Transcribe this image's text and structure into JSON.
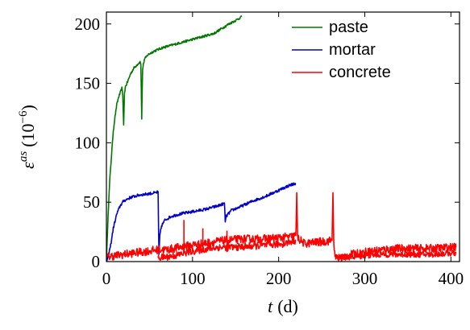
{
  "chart_data": {
    "type": "line",
    "xlabel_var": "t",
    "xlabel_unit": "(d)",
    "ylabel_var": "ε",
    "ylabel_sup": "as",
    "ylabel_unit_open": "(10",
    "ylabel_unit_exp": "−6",
    "ylabel_unit_close": ")",
    "xlim": [
      0,
      410
    ],
    "ylim": [
      0,
      210
    ],
    "x_ticks": [
      0,
      100,
      200,
      300,
      400
    ],
    "y_ticks": [
      0,
      50,
      100,
      150,
      200
    ],
    "x_tick_labels": [
      "0",
      "100",
      "200",
      "300",
      "400"
    ],
    "y_tick_labels": [
      "0",
      "50",
      "100",
      "150",
      "200"
    ],
    "grid": false,
    "legend_position": "top-right",
    "series": [
      {
        "name": "paste",
        "color": "#007800",
        "noise": 1.0,
        "points": [
          [
            0,
            0
          ],
          [
            2,
            40
          ],
          [
            4,
            70
          ],
          [
            6,
            90
          ],
          [
            8,
            110
          ],
          [
            10,
            122
          ],
          [
            12,
            132
          ],
          [
            14,
            138
          ],
          [
            16,
            142
          ],
          [
            18,
            146
          ],
          [
            19,
            140
          ],
          [
            20,
            115
          ],
          [
            21,
            142
          ],
          [
            22,
            147
          ],
          [
            25,
            152
          ],
          [
            28,
            158
          ],
          [
            32,
            163
          ],
          [
            36,
            166
          ],
          [
            39,
            168
          ],
          [
            40,
            166
          ],
          [
            41,
            120
          ],
          [
            42,
            162
          ],
          [
            44,
            170
          ],
          [
            48,
            174
          ],
          [
            55,
            177
          ],
          [
            65,
            180
          ],
          [
            80,
            183
          ],
          [
            95,
            186
          ],
          [
            110,
            189
          ],
          [
            125,
            192
          ],
          [
            140,
            199
          ],
          [
            150,
            203
          ],
          [
            157,
            206
          ]
        ]
      },
      {
        "name": "mortar",
        "color": "#0000c8",
        "noise": 1.2,
        "points": [
          [
            0,
            0
          ],
          [
            2,
            4
          ],
          [
            5,
            14
          ],
          [
            8,
            28
          ],
          [
            12,
            40
          ],
          [
            16,
            47
          ],
          [
            20,
            51
          ],
          [
            28,
            54
          ],
          [
            38,
            56
          ],
          [
            48,
            57
          ],
          [
            58,
            58
          ],
          [
            60,
            59
          ],
          [
            61,
            5
          ],
          [
            62,
            22
          ],
          [
            64,
            30
          ],
          [
            68,
            35
          ],
          [
            75,
            38
          ],
          [
            85,
            40
          ],
          [
            100,
            42
          ],
          [
            115,
            44
          ],
          [
            130,
            47
          ],
          [
            137,
            49
          ],
          [
            138,
            34
          ],
          [
            139,
            38
          ],
          [
            145,
            43
          ],
          [
            155,
            46
          ],
          [
            170,
            51
          ],
          [
            185,
            55
          ],
          [
            200,
            60
          ],
          [
            212,
            64
          ],
          [
            220,
            66
          ]
        ]
      },
      {
        "name": "concrete",
        "color": "#ff0000",
        "noise": 3.5,
        "points": [
          [
            0,
            4
          ],
          [
            20,
            6
          ],
          [
            40,
            8
          ],
          [
            60,
            10
          ],
          [
            70,
            10
          ],
          [
            85,
            12
          ],
          [
            100,
            14
          ],
          [
            120,
            16
          ],
          [
            140,
            18
          ],
          [
            160,
            19
          ],
          [
            180,
            19
          ],
          [
            200,
            20
          ],
          [
            215,
            21
          ],
          [
            220,
            22
          ],
          [
            221,
            58
          ],
          [
            222,
            20
          ],
          [
            230,
            15
          ],
          [
            240,
            16
          ],
          [
            255,
            17
          ],
          [
            262,
            18
          ],
          [
            263,
            58
          ],
          [
            264,
            16
          ],
          [
            266,
            3
          ],
          [
            270,
            3
          ],
          [
            285,
            6
          ],
          [
            300,
            8
          ],
          [
            320,
            10
          ],
          [
            340,
            11
          ],
          [
            360,
            11
          ],
          [
            380,
            11
          ],
          [
            400,
            12
          ],
          [
            406,
            12
          ]
        ]
      },
      {
        "color": "#ff0000",
        "noise": 3.0,
        "points": [
          [
            60,
            3
          ],
          [
            80,
            5
          ],
          [
            95,
            8
          ],
          [
            110,
            10
          ],
          [
            130,
            12
          ],
          [
            150,
            12
          ],
          [
            170,
            13
          ],
          [
            190,
            14
          ],
          [
            205,
            15
          ],
          [
            215,
            17
          ],
          [
            220,
            18
          ]
        ]
      },
      {
        "color": "#ff0000",
        "noise": 2.5,
        "points": [
          [
            266,
            3
          ],
          [
            285,
            4
          ],
          [
            300,
            5
          ],
          [
            320,
            6
          ],
          [
            340,
            6
          ],
          [
            360,
            6
          ],
          [
            380,
            6
          ],
          [
            395,
            7
          ],
          [
            406,
            7
          ]
        ]
      }
    ],
    "spikes": [
      {
        "color": "#ff0000",
        "x": 90,
        "y": 35
      },
      {
        "color": "#ff0000",
        "x": 112,
        "y": 28
      },
      {
        "color": "#ff0000",
        "x": 140,
        "y": 26
      }
    ]
  }
}
